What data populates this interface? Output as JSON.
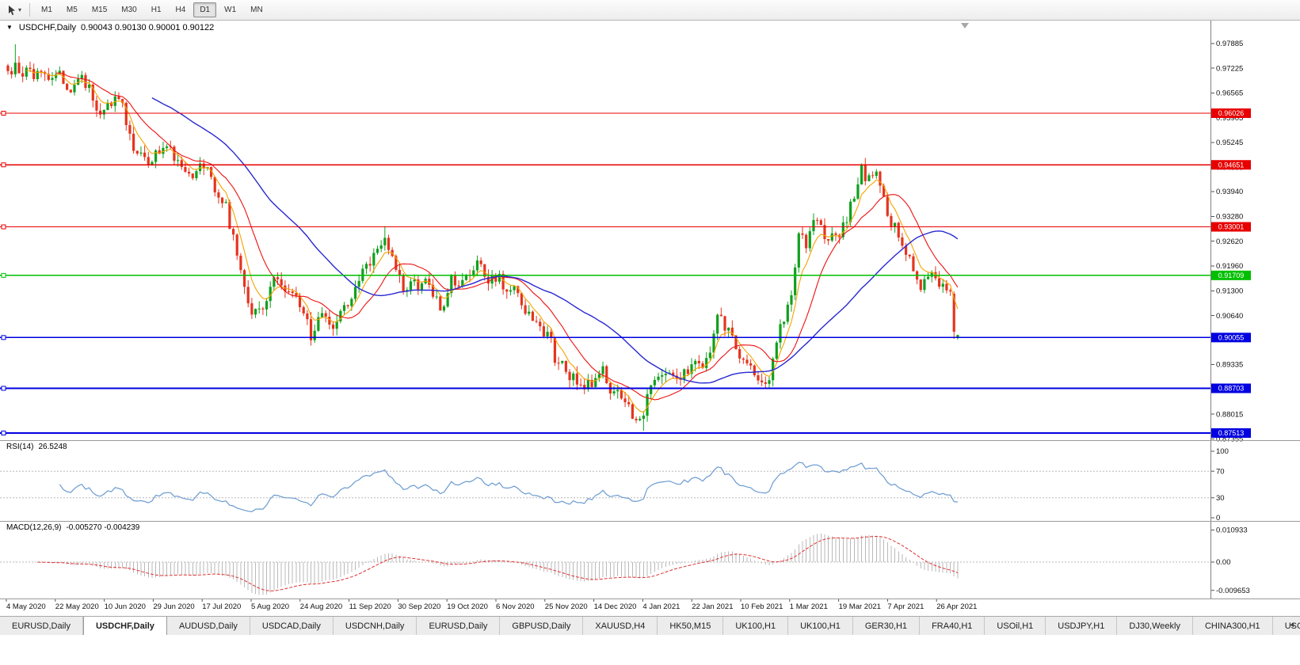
{
  "icons": {
    "one_click_collapse": "▼",
    "tool_dropdown_caret": "▾",
    "tab_scroll_left": "◄"
  },
  "toolbar": {
    "timeframes": [
      "M1",
      "M5",
      "M15",
      "M30",
      "H1",
      "H4",
      "D1",
      "W1",
      "MN"
    ],
    "active_timeframe": "D1"
  },
  "chart": {
    "title": "USDCHF,Daily",
    "ohlc_text": "0.90043 0.90130 0.90001 0.90122"
  },
  "chart_data": {
    "type": "candlestick",
    "symbol": "USDCHF",
    "period": "Daily",
    "last_bar": {
      "open": 0.90043,
      "high": 0.9013,
      "low": 0.90001,
      "close": 0.90122
    },
    "price_axis": {
      "max": 0.98491,
      "min": 0.87323,
      "ticks": [
        "0.97885",
        "0.97225",
        "0.96565",
        "0.95905",
        "0.95245",
        "0.94585",
        "0.93940",
        "0.93280",
        "0.92620",
        "0.91960",
        "0.91300",
        "0.90640",
        "0.89335",
        "0.88015",
        "0.87355"
      ]
    },
    "time_axis": [
      "4 May 2020",
      "22 May 2020",
      "10 Jun 2020",
      "29 Jun 2020",
      "17 Jul 2020",
      "5 Aug 2020",
      "24 Aug 2020",
      "11 Sep 2020",
      "30 Sep 2020",
      "19 Oct 2020",
      "6 Nov 2020",
      "25 Nov 2020",
      "14 Dec 2020",
      "4 Jan 2021",
      "22 Jan 2021",
      "10 Feb 2021",
      "1 Mar 2021",
      "19 Mar 2021",
      "7 Apr 2021",
      "26 Apr 2021"
    ],
    "horizontal_lines": [
      {
        "price": 0.96026,
        "label": "0.96026",
        "color": "#e80000",
        "kind": "resistance"
      },
      {
        "price": 0.94651,
        "label": "0.94651",
        "color": "#e80000",
        "kind": "resistance"
      },
      {
        "price": 0.93001,
        "label": "0.93001",
        "color": "#e80000",
        "kind": "resistance"
      },
      {
        "price": 0.91709,
        "label": "0.91709",
        "color": "#00bf00",
        "kind": "level"
      },
      {
        "price": 0.90055,
        "label": "0.90055",
        "color": "#0000e1",
        "kind": "support"
      },
      {
        "price": 0.88703,
        "label": "0.88703",
        "color": "#0000e1",
        "kind": "support"
      },
      {
        "price": 0.87513,
        "label": "0.87513",
        "color": "#0000e1",
        "kind": "support"
      }
    ],
    "candles": {
      "count": 258,
      "up_color": "#10a01d",
      "down_color": "#e5341f",
      "close_anchors": [
        [
          0,
          0.9695
        ],
        [
          2,
          0.972
        ],
        [
          11,
          0.97
        ],
        [
          20,
          0.9685
        ],
        [
          26,
          0.9608
        ],
        [
          30,
          0.9645
        ],
        [
          34,
          0.9528
        ],
        [
          38,
          0.9482
        ],
        [
          43,
          0.9502
        ],
        [
          49,
          0.9445
        ],
        [
          52,
          0.9468
        ],
        [
          56,
          0.9408
        ],
        [
          59,
          0.9345
        ],
        [
          63,
          0.9195
        ],
        [
          66,
          0.9085
        ],
        [
          69,
          0.9062
        ],
        [
          72,
          0.9168
        ],
        [
          75,
          0.9128
        ],
        [
          78,
          0.9108
        ],
        [
          82,
          0.9008
        ],
        [
          85,
          0.9088
        ],
        [
          88,
          0.9062
        ],
        [
          92,
          0.9115
        ],
        [
          95,
          0.9142
        ],
        [
          99,
          0.9218
        ],
        [
          102,
          0.9288
        ],
        [
          104,
          0.9245
        ],
        [
          107,
          0.9148
        ],
        [
          110,
          0.9162
        ],
        [
          114,
          0.9132
        ],
        [
          117,
          0.9072
        ],
        [
          120,
          0.9158
        ],
        [
          123,
          0.9152
        ],
        [
          127,
          0.9188
        ],
        [
          130,
          0.9142
        ],
        [
          133,
          0.9155
        ],
        [
          136,
          0.9128
        ],
        [
          139,
          0.9105
        ],
        [
          143,
          0.9058
        ],
        [
          146,
          0.9022
        ],
        [
          148,
          0.8952
        ],
        [
          151,
          0.8908
        ],
        [
          155,
          0.8896
        ],
        [
          158,
          0.8872
        ],
        [
          161,
          0.8906
        ],
        [
          164,
          0.8852
        ],
        [
          167,
          0.8832
        ],
        [
          170,
          0.8792
        ],
        [
          172,
          0.8772
        ],
        [
          174,
          0.8888
        ],
        [
          177,
          0.8918
        ],
        [
          180,
          0.8882
        ],
        [
          183,
          0.8902
        ],
        [
          186,
          0.8926
        ],
        [
          190,
          0.8962
        ],
        [
          192,
          0.9038
        ],
        [
          195,
          0.9012
        ],
        [
          198,
          0.8964
        ],
        [
          201,
          0.8942
        ],
        [
          205,
          0.8888
        ],
        [
          207,
          0.8938
        ],
        [
          209,
          0.9032
        ],
        [
          212,
          0.9122
        ],
        [
          214,
          0.9278
        ],
        [
          216,
          0.9252
        ],
        [
          218,
          0.9298
        ],
        [
          221,
          0.9268
        ],
        [
          223,
          0.9292
        ],
        [
          225,
          0.9258
        ],
        [
          227,
          0.9318
        ],
        [
          229,
          0.9378
        ],
        [
          231,
          0.9442
        ],
        [
          232,
          0.9418
        ],
        [
          235,
          0.9438
        ],
        [
          237,
          0.9358
        ],
        [
          239,
          0.9318
        ],
        [
          241,
          0.9282
        ],
        [
          243,
          0.9222
        ],
        [
          245,
          0.9182
        ],
        [
          247,
          0.9152
        ],
        [
          250,
          0.9168
        ],
        [
          252,
          0.9148
        ],
        [
          254,
          0.9138
        ],
        [
          256,
          0.9118
        ],
        [
          257,
          0.9012
        ]
      ],
      "spikes": [
        {
          "index": 2,
          "high": 0.9786
        },
        {
          "index": 102,
          "high": 0.9302
        },
        {
          "index": 172,
          "low": 0.8757
        },
        {
          "index": 231,
          "high": 0.9469
        }
      ],
      "forced_last": [
        {
          "open": 0.9122,
          "high": 0.9128,
          "low": 0.9002,
          "close": 0.9021
        },
        {
          "open": 0.90043,
          "high": 0.9013,
          "low": 0.90001,
          "close": 0.90122
        }
      ]
    },
    "moving_averages": [
      {
        "name": "fast",
        "method": "ema",
        "period": 6,
        "color": "#f5a300"
      },
      {
        "name": "medium",
        "method": "sma",
        "period": 14,
        "color": "#ee1111"
      },
      {
        "name": "slow",
        "method": "sma",
        "period": 40,
        "color": "#2828d2"
      }
    ],
    "indicators": {
      "rsi": {
        "name": "RSI(14)",
        "value": "26.5248",
        "period": 14,
        "axis_ticks": [
          "100",
          "70",
          "30",
          "0"
        ],
        "dotted_levels": [
          70,
          30
        ],
        "color": "#6b9bd1"
      },
      "macd": {
        "name": "MACD(12,26,9)",
        "value": "-0.005270 -0.004239",
        "fast": 12,
        "slow": 26,
        "signal": 9,
        "axis_ticks": [
          "0.010933",
          "0.00",
          "-0.009653"
        ],
        "histogram_color": "#b9b9b9",
        "signal_color": "#e03030"
      }
    }
  },
  "tabs": {
    "items": [
      "EURUSD,Daily",
      "USDCHF,Daily",
      "AUDUSD,Daily",
      "USDCAD,Daily",
      "USDCNH,Daily",
      "EURUSD,Daily",
      "GBPUSD,Daily",
      "XAUUSD,H4",
      "HK50,M15",
      "UK100,H1",
      "UK100,H1",
      "GER30,H1",
      "FRA40,H1",
      "USOil,H1",
      "USDJPY,H1",
      "DJ30,Weekly",
      "CHINA300,H1",
      "USC"
    ],
    "active_index": 1
  }
}
